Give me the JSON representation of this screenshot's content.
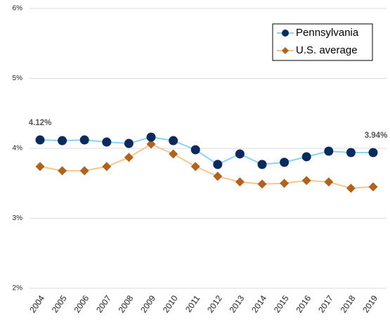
{
  "chart_data": {
    "type": "line",
    "categories": [
      "2004",
      "2005",
      "2006",
      "2007",
      "2008",
      "2009",
      "2010",
      "2011",
      "2012",
      "2013",
      "2014",
      "2015",
      "2016",
      "2017",
      "2018",
      "2019"
    ],
    "series": [
      {
        "name": "Pennsylvania",
        "color": "#8ad3f2",
        "marker_color": "#0c2a5b",
        "marker": "circle",
        "values": [
          4.12,
          4.11,
          4.12,
          4.09,
          4.07,
          4.16,
          4.11,
          3.98,
          3.77,
          3.92,
          3.77,
          3.8,
          3.88,
          3.96,
          3.94,
          3.94
        ],
        "value_labels": [
          "4.12%",
          null,
          null,
          null,
          null,
          null,
          null,
          null,
          null,
          null,
          null,
          null,
          null,
          null,
          null,
          "3.94%"
        ]
      },
      {
        "name": "U.S. average",
        "color": "#f8c68c",
        "marker_color": "#b0621f",
        "marker": "diamond",
        "values": [
          3.74,
          3.68,
          3.68,
          3.74,
          3.87,
          4.06,
          3.92,
          3.74,
          3.6,
          3.52,
          3.49,
          3.5,
          3.54,
          3.52,
          3.43,
          3.45
        ]
      }
    ],
    "ylim": [
      2,
      6
    ],
    "yticks": [
      {
        "value": 2,
        "label": "2%"
      },
      {
        "value": 3,
        "label": "3%"
      },
      {
        "value": 4,
        "label": "4%"
      },
      {
        "value": 5,
        "label": "5%"
      },
      {
        "value": 6,
        "label": "6%"
      }
    ],
    "grid": true,
    "legend": "top-right"
  }
}
